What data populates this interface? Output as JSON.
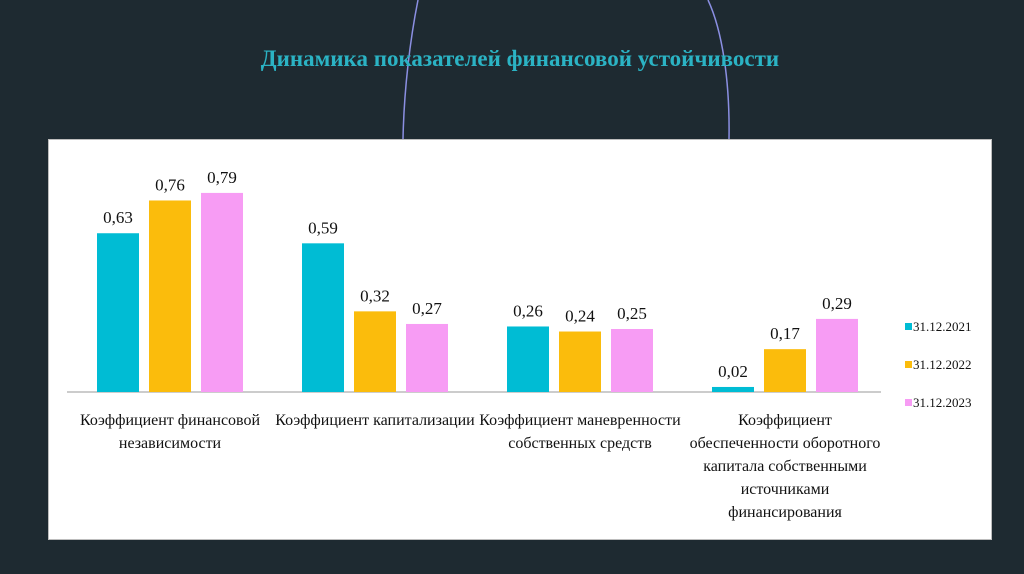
{
  "chart_data": {
    "type": "bar",
    "title": "Динамика показателей финансовой устойчивости",
    "categories": [
      [
        "Коэффициент финансовой",
        "независимости"
      ],
      [
        "Коэффициент капитализации"
      ],
      [
        "Коэффициент маневренности",
        "собственных средств"
      ],
      [
        "Коэффициент",
        "обеспеченности оборотного",
        "капитала собственными",
        "источниками",
        "финансирования"
      ]
    ],
    "series": [
      {
        "name": "31.12.2021",
        "color": "#00bcd4",
        "values": [
          0.63,
          0.59,
          0.26,
          0.02
        ],
        "labels": [
          "0,63",
          "0,59",
          "0,26",
          "0,02"
        ]
      },
      {
        "name": "31.12.2022",
        "color": "#fbbc0c",
        "values": [
          0.76,
          0.32,
          0.24,
          0.17
        ],
        "labels": [
          "0,76",
          "0,32",
          "0,24",
          "0,17"
        ]
      },
      {
        "name": "31.12.2023",
        "color": "#f79cf4",
        "values": [
          0.79,
          0.27,
          0.25,
          0.29
        ],
        "labels": [
          "0,79",
          "0,27",
          "0,25",
          "0,29"
        ]
      }
    ],
    "legend_position": "right",
    "grid": false,
    "ylim": [
      0,
      0.8
    ]
  }
}
